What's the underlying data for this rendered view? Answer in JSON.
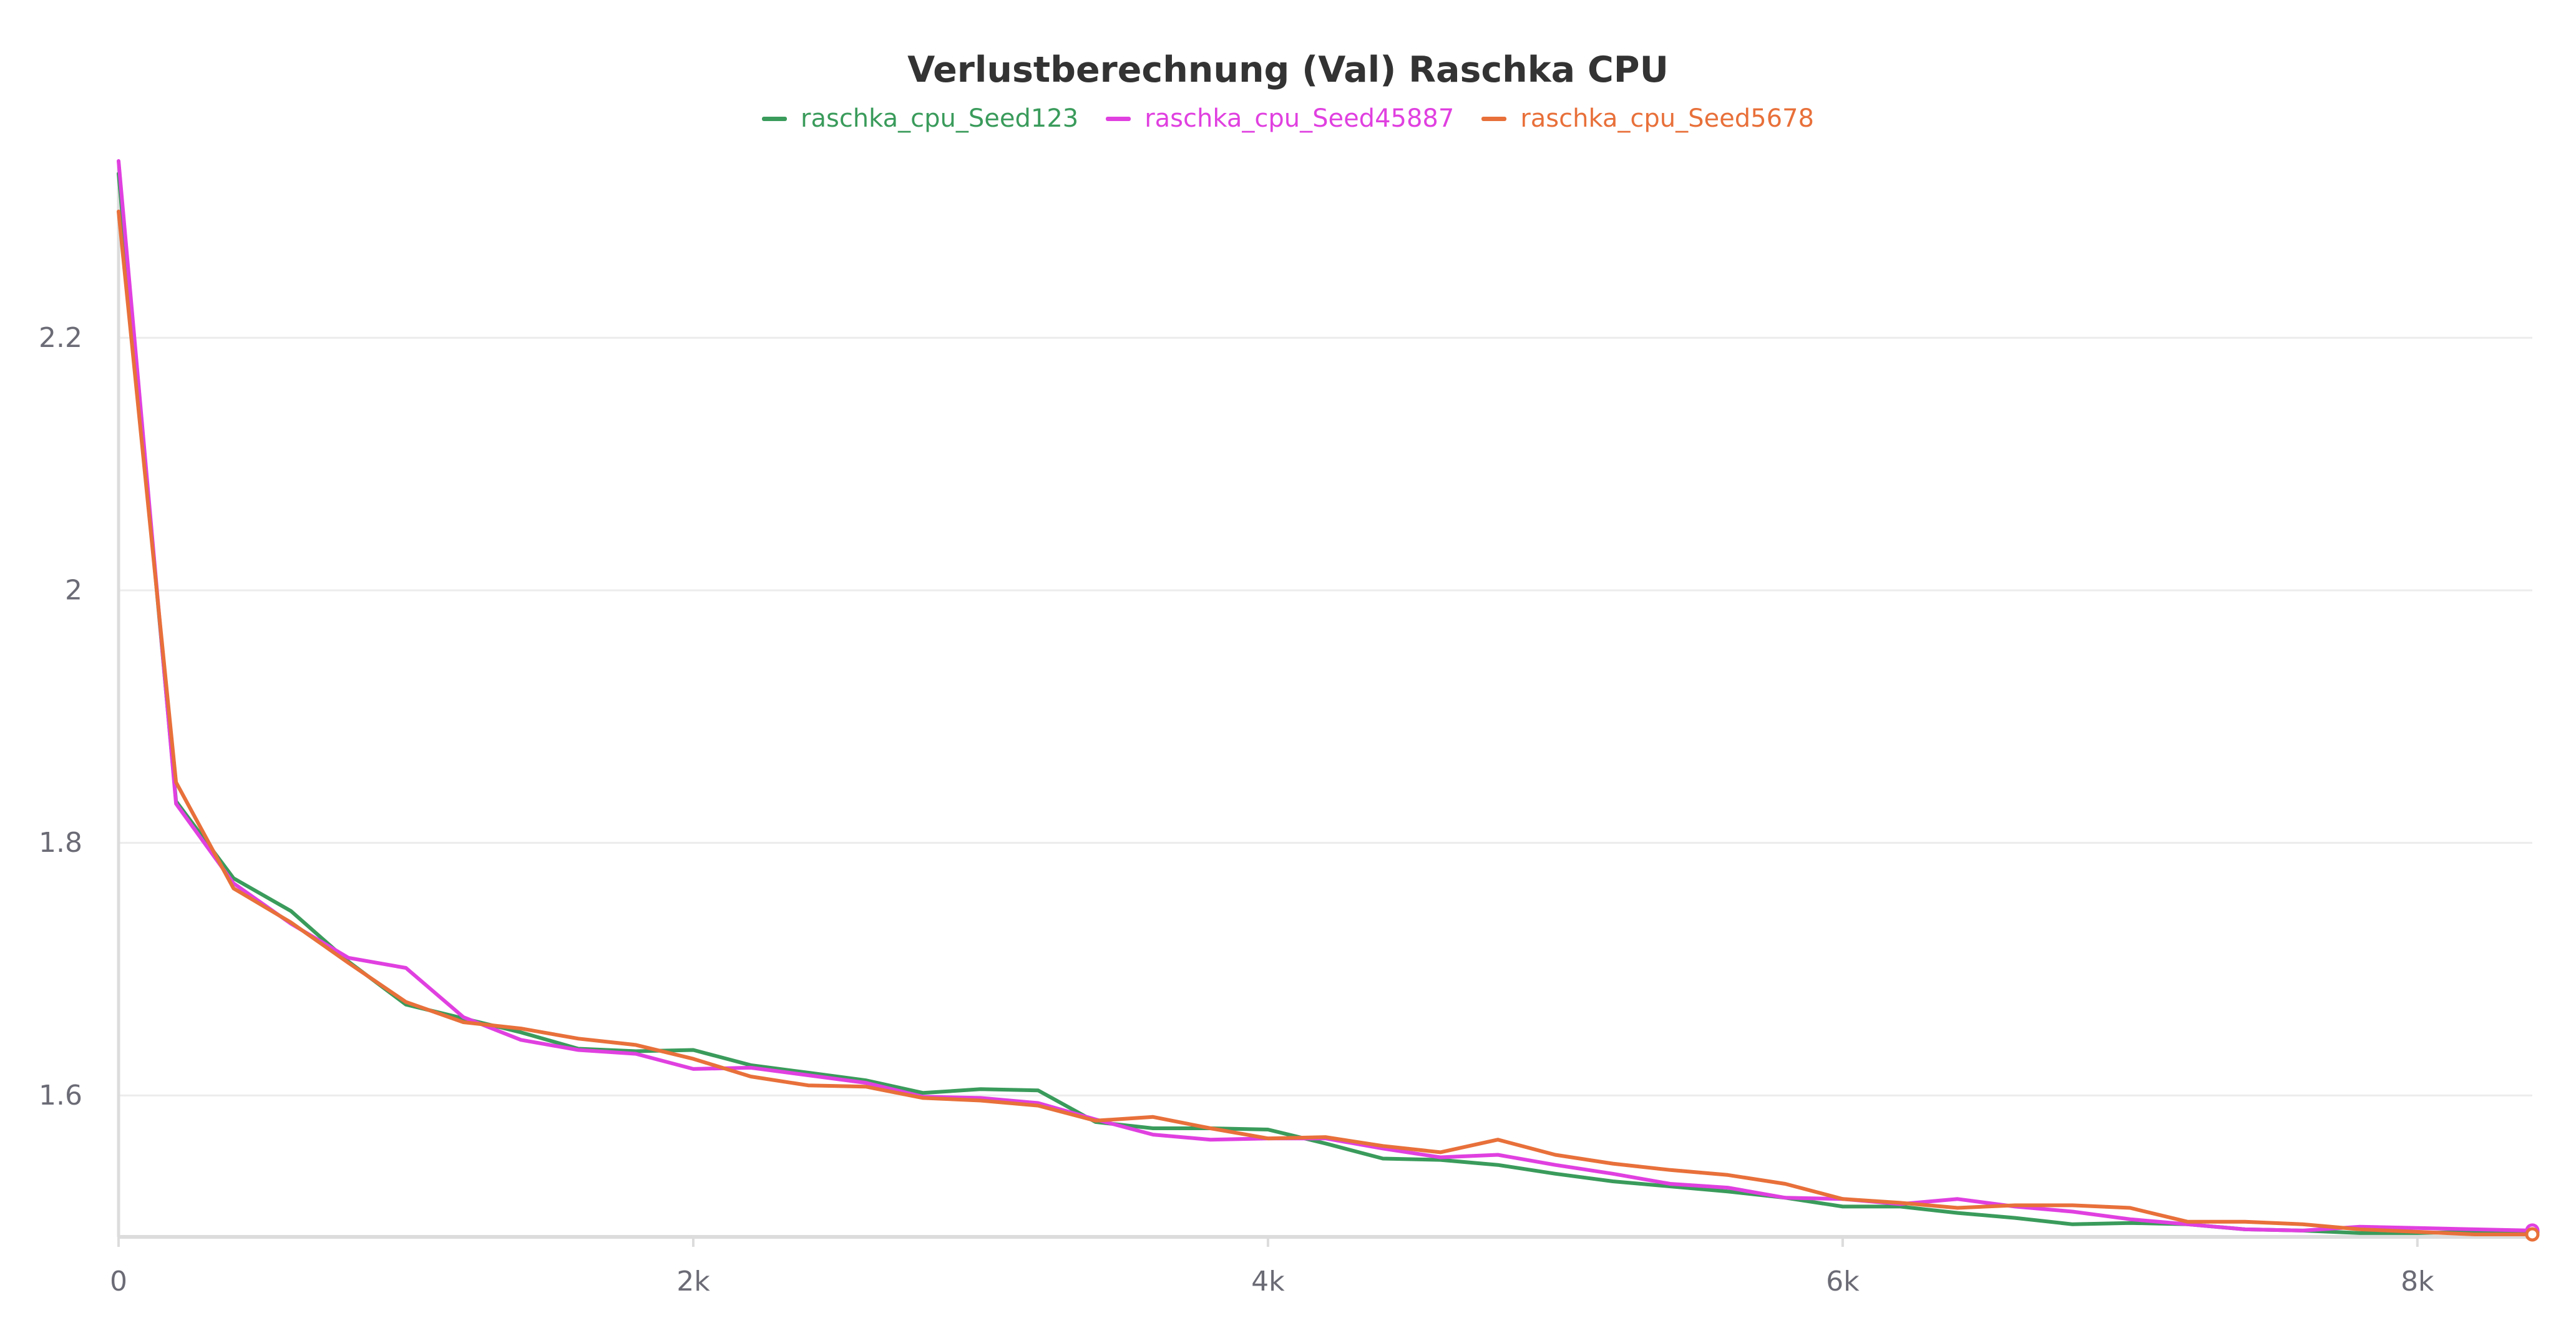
{
  "chart_data": {
    "type": "line",
    "title": "Verlustberechnung (Val) Raschka CPU",
    "xlabel": "",
    "ylabel": "",
    "xlim": [
      0,
      8400
    ],
    "ylim": [
      1.488,
      2.34
    ],
    "x_ticks": [
      0,
      2000,
      4000,
      6000,
      8000
    ],
    "x_tick_labels": [
      "0",
      "2k",
      "4k",
      "6k",
      "8k"
    ],
    "y_ticks": [
      1.6,
      1.8,
      2.0,
      2.2
    ],
    "y_tick_labels": [
      "1.6",
      "1.8",
      "2",
      "2.2"
    ],
    "grid": true,
    "legend_position": "top-center",
    "x": [
      0,
      200,
      400,
      600,
      800,
      1000,
      1200,
      1400,
      1600,
      1800,
      2000,
      2200,
      2400,
      2600,
      2800,
      3000,
      3200,
      3400,
      3600,
      3800,
      4000,
      4200,
      4400,
      4600,
      4800,
      5000,
      5200,
      5400,
      5600,
      5800,
      6000,
      6200,
      6400,
      6600,
      6800,
      7000,
      7200,
      7400,
      7600,
      7800,
      8000,
      8200,
      8400
    ],
    "series": [
      {
        "name": "raschka_cpu_Seed123",
        "color": "#3a9b5b",
        "values": [
          2.33,
          1.833,
          1.772,
          1.746,
          1.706,
          1.672,
          1.661,
          1.65,
          1.637,
          1.635,
          1.636,
          1.624,
          1.618,
          1.612,
          1.602,
          1.605,
          1.604,
          1.579,
          1.574,
          1.574,
          1.573,
          1.562,
          1.55,
          1.549,
          1.545,
          1.538,
          1.532,
          1.528,
          1.524,
          1.519,
          1.512,
          1.512,
          1.507,
          1.503,
          1.498,
          1.499,
          1.498,
          1.494,
          1.493,
          1.491,
          1.491,
          1.492,
          1.492
        ]
      },
      {
        "name": "raschka_cpu_Seed45887",
        "color": "#e040e0",
        "values": [
          2.34,
          1.831,
          1.768,
          1.736,
          1.709,
          1.701,
          1.662,
          1.644,
          1.636,
          1.633,
          1.621,
          1.622,
          1.616,
          1.61,
          1.599,
          1.598,
          1.594,
          1.581,
          1.569,
          1.565,
          1.566,
          1.566,
          1.558,
          1.551,
          1.553,
          1.545,
          1.538,
          1.53,
          1.527,
          1.519,
          1.518,
          1.514,
          1.518,
          1.512,
          1.508,
          1.502,
          1.498,
          1.494,
          1.493,
          1.496,
          1.495,
          1.494,
          1.493
        ]
      },
      {
        "name": "raschka_cpu_Seed5678",
        "color": "#e8703a",
        "values": [
          2.3,
          1.848,
          1.764,
          1.737,
          1.705,
          1.674,
          1.658,
          1.653,
          1.645,
          1.64,
          1.629,
          1.615,
          1.608,
          1.607,
          1.598,
          1.596,
          1.592,
          1.58,
          1.583,
          1.574,
          1.566,
          1.567,
          1.56,
          1.555,
          1.565,
          1.553,
          1.546,
          1.541,
          1.537,
          1.53,
          1.518,
          1.515,
          1.511,
          1.513,
          1.513,
          1.511,
          1.5,
          1.5,
          1.498,
          1.494,
          1.492,
          1.49,
          1.49
        ]
      }
    ]
  }
}
